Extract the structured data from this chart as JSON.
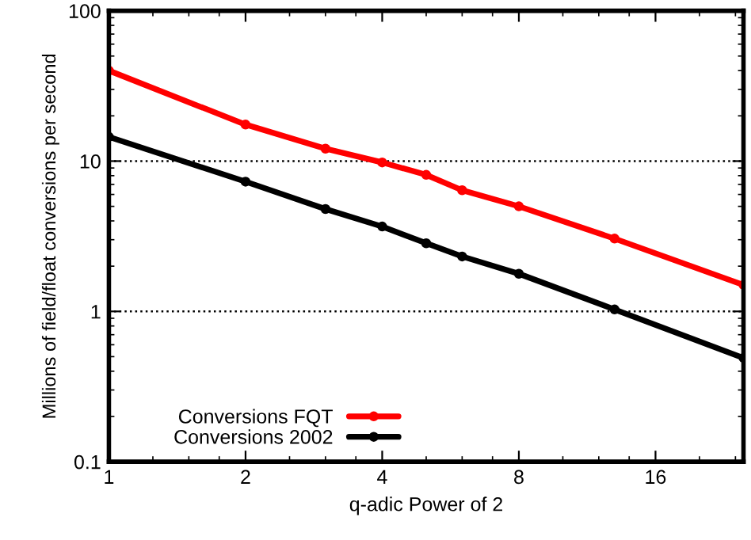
{
  "chart_data": {
    "type": "line",
    "xlabel": "q-adic Power of 2",
    "ylabel": "Millions of field/float conversions per second",
    "x": [
      1,
      2,
      3,
      4,
      5,
      6,
      8,
      13,
      25
    ],
    "series": [
      {
        "name": "Conversions FQT",
        "color": "#ff0000",
        "values": [
          40,
          17.5,
          12.1,
          9.8,
          8.1,
          6.4,
          5.0,
          3.05,
          1.5
        ]
      },
      {
        "name": "Conversions 2002",
        "color": "#000000",
        "values": [
          14.5,
          7.3,
          4.8,
          3.67,
          2.84,
          2.32,
          1.78,
          1.03,
          0.49
        ]
      }
    ],
    "log": "xy",
    "xlim": [
      1,
      25
    ],
    "xticks": [
      1,
      2,
      4,
      8,
      16
    ],
    "ylim": [
      0.1,
      100
    ],
    "yticks": [
      0.1,
      1,
      10,
      100
    ],
    "grid": "y",
    "legend": "bottom left",
    "marker": "circle",
    "line_style": "solid"
  }
}
